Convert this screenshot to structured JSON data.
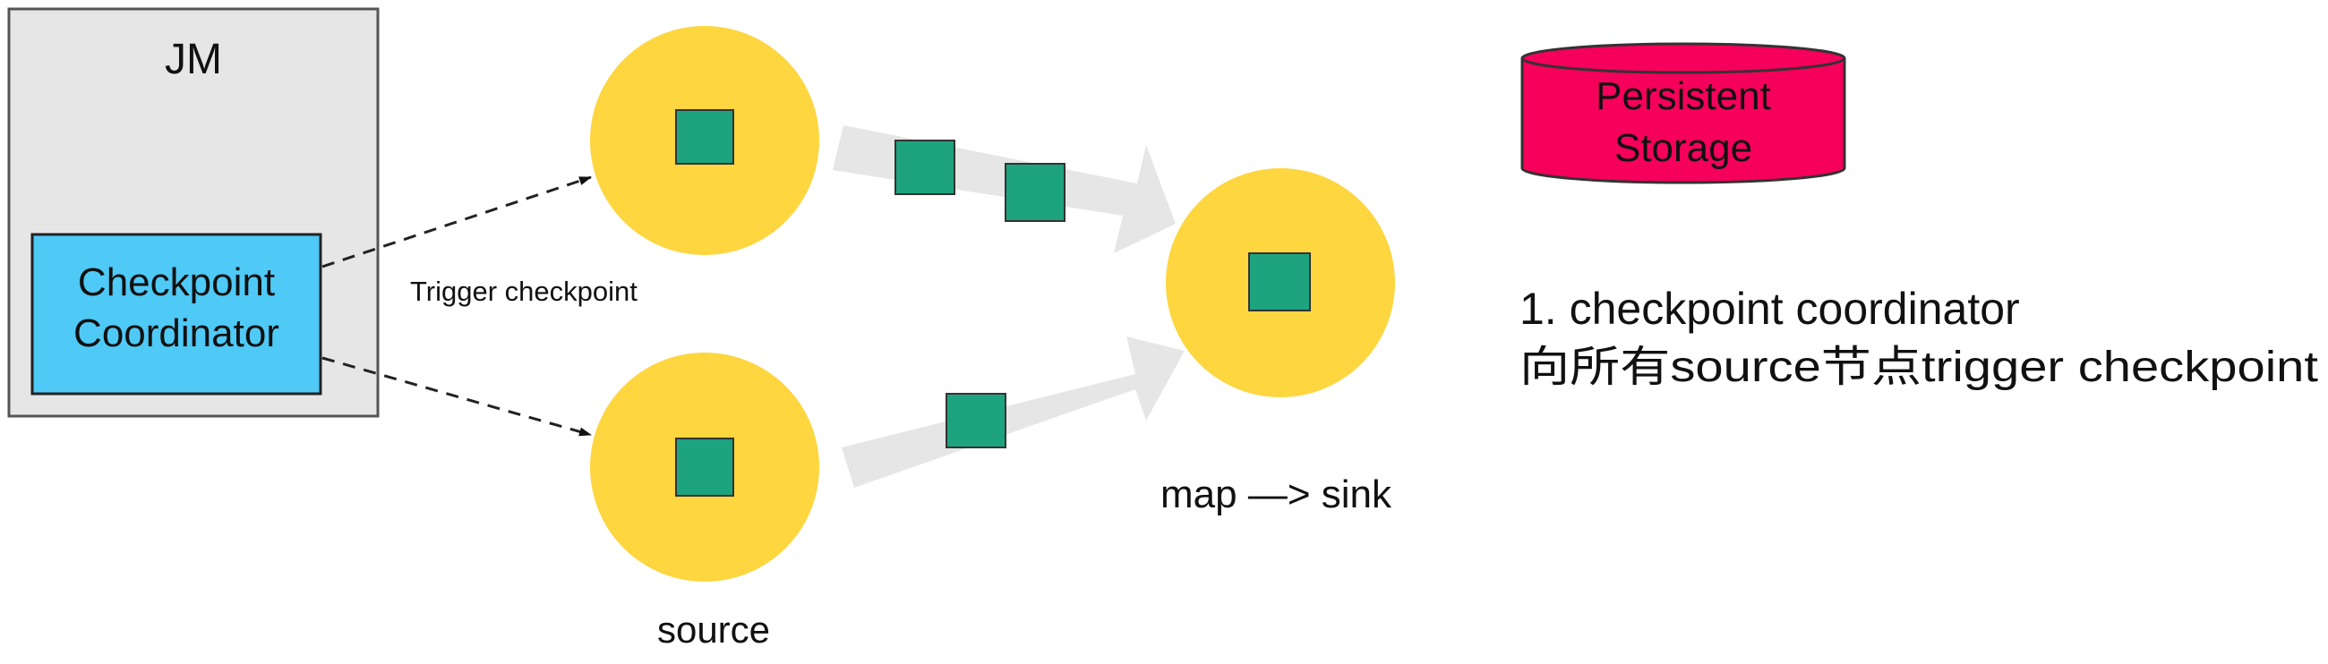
{
  "jm": {
    "title": "JM",
    "coordinator": [
      "Checkpoint",
      "Coordinator"
    ]
  },
  "edges": {
    "trigger_label": "Trigger checkpoint"
  },
  "storage": {
    "label": [
      "Persistent",
      "Storage"
    ]
  },
  "nodes": {
    "source_label": "source",
    "sink_label": "map —> sink"
  },
  "note": {
    "line1": "1. checkpoint coordinator",
    "line2": "向所有source节点trigger checkpoint"
  },
  "colors": {
    "jm_box": "#e6e6e6",
    "coordinator": "#4fc9f6",
    "node": "#fdd640",
    "record": "#1da37e",
    "stream": "#e6e6e6",
    "storage": "#f5005a"
  }
}
